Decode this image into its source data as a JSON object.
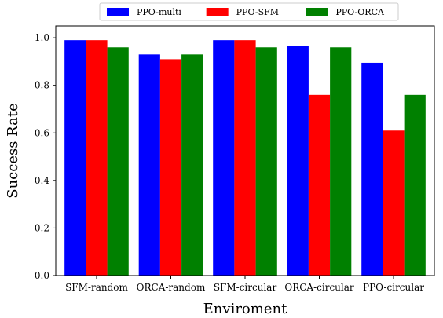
{
  "chart_data": {
    "type": "bar",
    "categories": [
      "SFM-random",
      "ORCA-random",
      "SFM-circular",
      "ORCA-circular",
      "PPO-circular"
    ],
    "series": [
      {
        "name": "PPO-multi",
        "color": "#0000ff",
        "values": [
          0.99,
          0.93,
          0.99,
          0.965,
          0.895
        ]
      },
      {
        "name": "PPO-SFM",
        "color": "#ff0000",
        "values": [
          0.99,
          0.91,
          0.99,
          0.76,
          0.61
        ]
      },
      {
        "name": "PPO-ORCA",
        "color": "#008000",
        "values": [
          0.96,
          0.93,
          0.96,
          0.96,
          0.76
        ]
      }
    ],
    "xlabel": "Enviroment",
    "ylabel": "Success Rate",
    "ylim": [
      0,
      1.05
    ],
    "yticks": [
      0.0,
      0.2,
      0.4,
      0.6,
      0.8,
      1.0
    ],
    "ytick_labels": [
      "0.0",
      "0.2",
      "0.4",
      "0.6",
      "0.8",
      "1.0"
    ],
    "grid": false,
    "legend_position": "top-center"
  }
}
